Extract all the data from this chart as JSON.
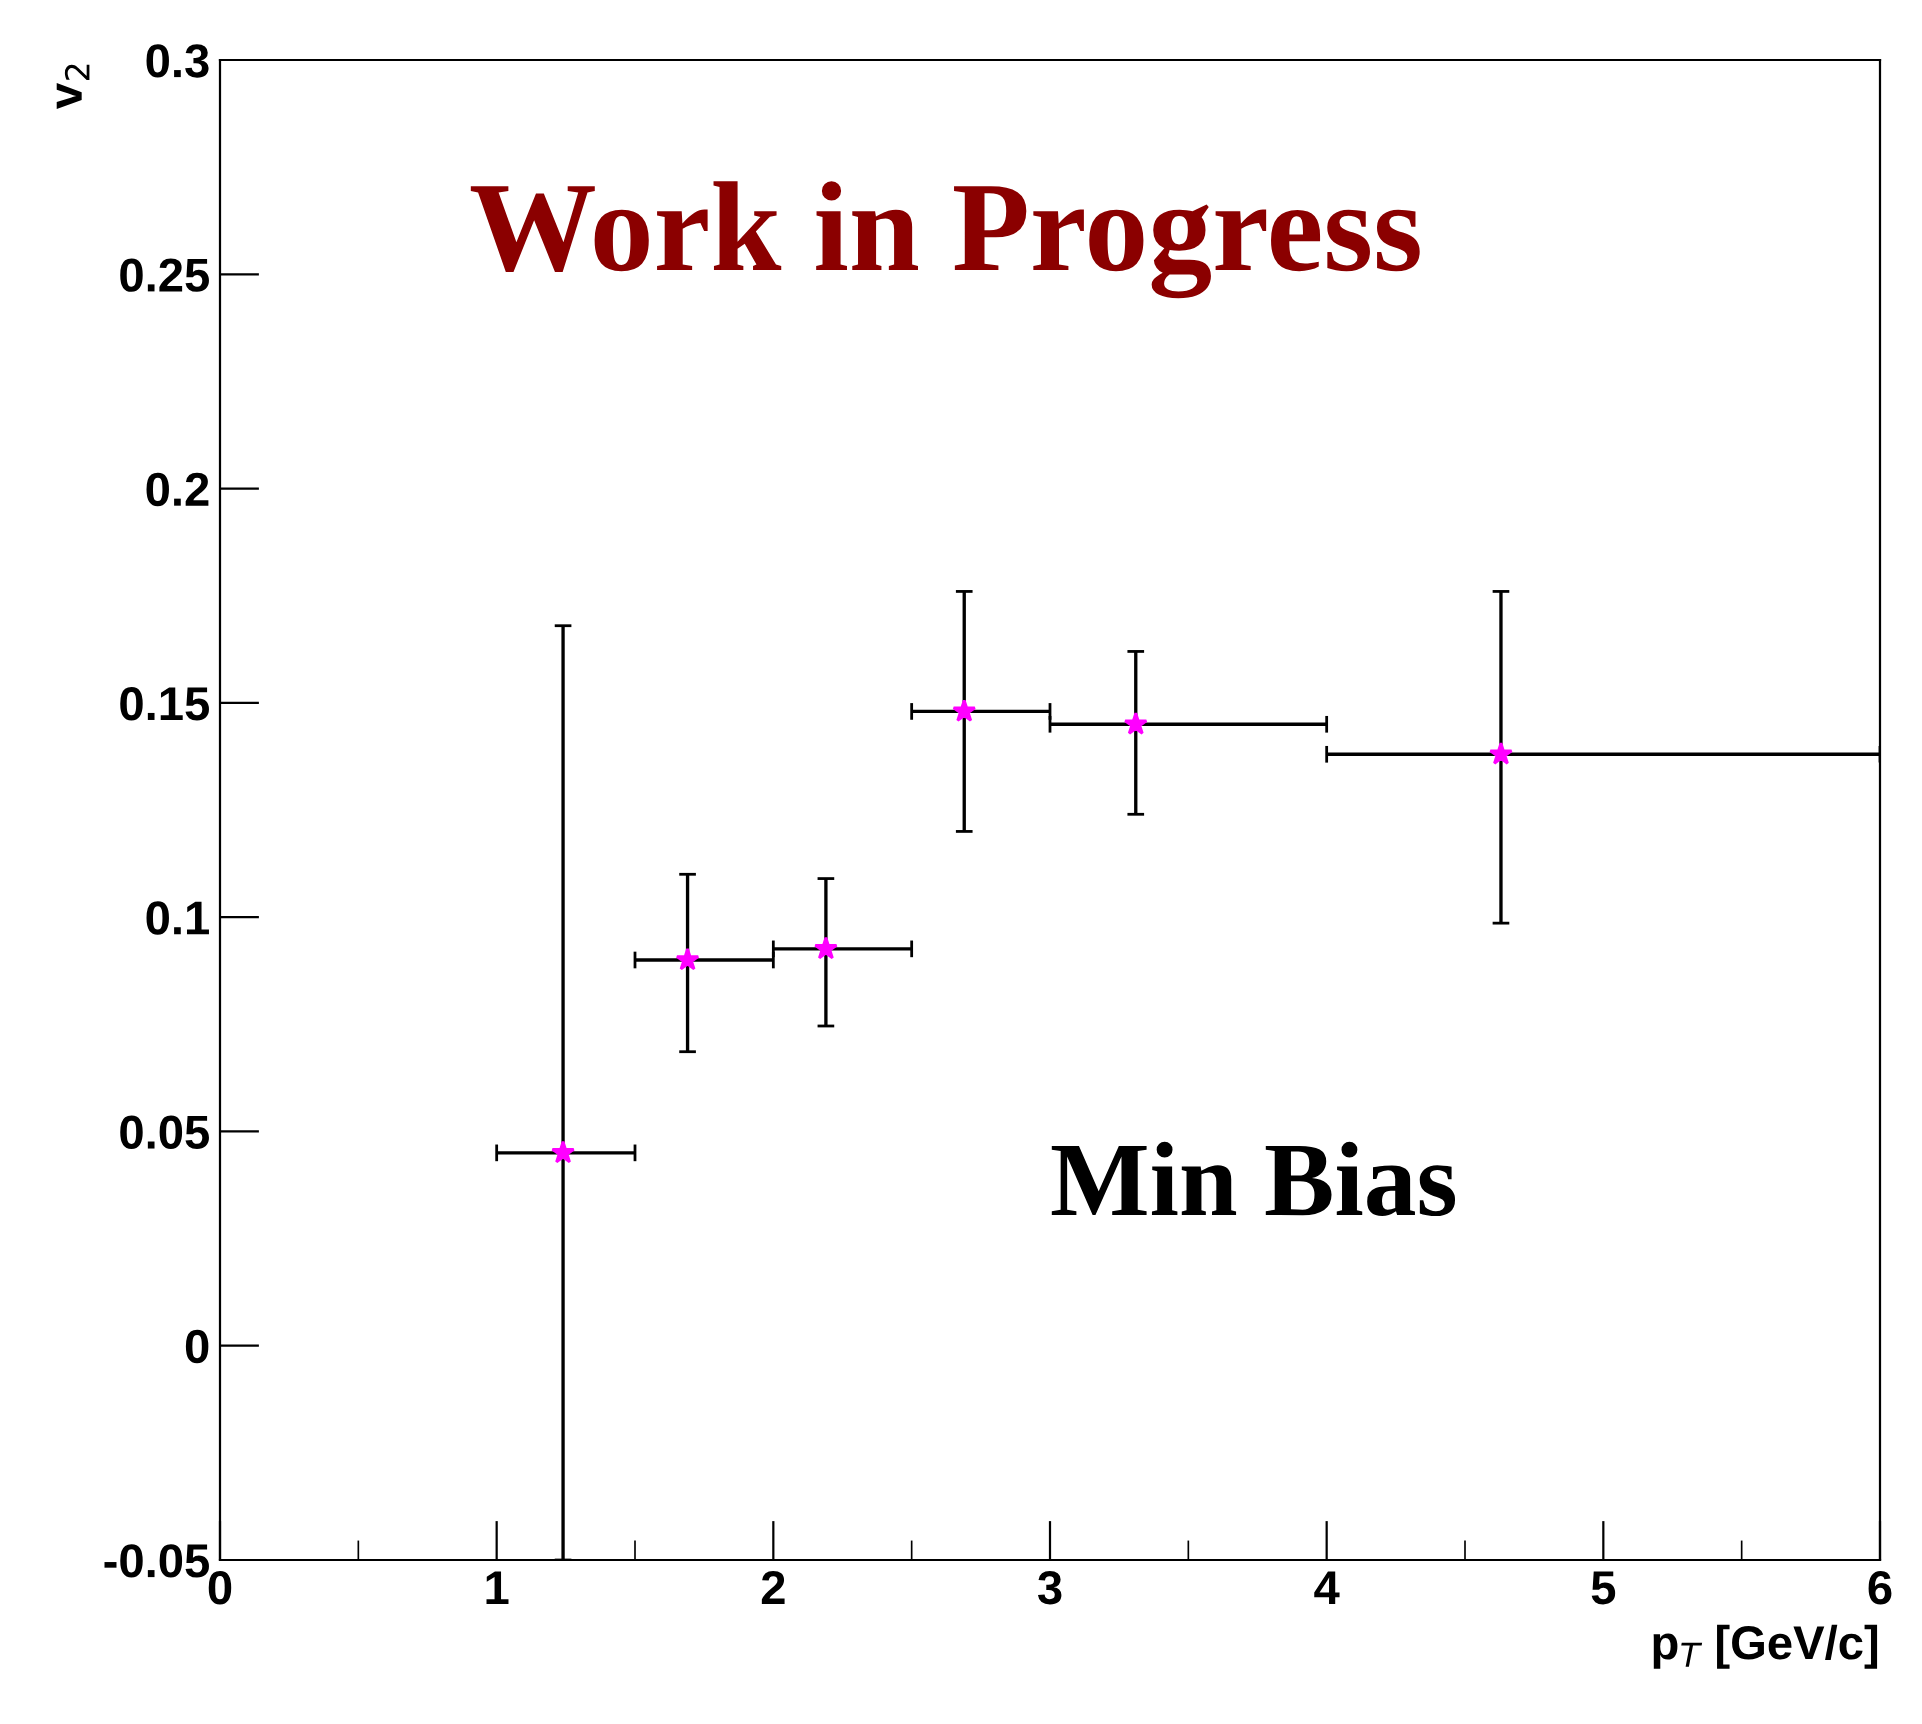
{
  "chart_data": {
    "type": "scatter",
    "xlabel": "p$_{T}$ [GeV/c]",
    "ylabel": "v$_{2}$",
    "x": [
      1.24,
      1.69,
      2.19,
      2.69,
      3.31,
      4.63
    ],
    "series": [
      {
        "color": "#ff00ff",
        "values": [
          0.045,
          0.09,
          0.0926,
          0.148,
          0.145,
          0.138
        ],
        "errors": [
          [
            -0.05,
            0.168
          ],
          [
            0.0686,
            0.11
          ],
          [
            0.0746,
            0.109
          ],
          [
            0.12,
            0.176
          ],
          [
            0.124,
            0.162
          ],
          [
            0.0986,
            0.176
          ]
        ],
        "xerrors": [
          [
            1.0,
            1.5
          ],
          [
            1.5,
            2.0
          ],
          [
            2.0,
            2.5
          ],
          [
            2.5,
            3.0
          ],
          [
            3.0,
            4.0
          ],
          [
            4.0,
            6.0
          ]
        ]
      }
    ],
    "marker": "star",
    "xlim": [
      0,
      6
    ],
    "ylim": [
      -0.05,
      0.3
    ],
    "xticks": [
      0,
      1,
      2,
      3,
      4,
      5,
      6
    ],
    "yticks": [
      {
        "value": -0.05,
        "label": "-0.05"
      },
      0,
      0.05,
      0.1,
      0.15,
      0.2,
      0.25,
      0.3
    ],
    "annotations": [
      "Work in Progress",
      "Min Bias"
    ],
    "grid": false,
    "legend": false
  }
}
